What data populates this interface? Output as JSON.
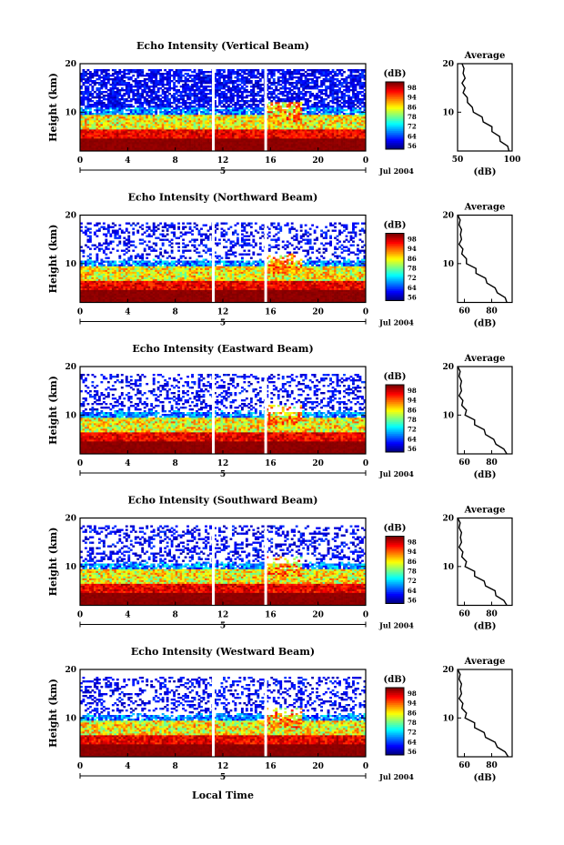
{
  "figure": {
    "date_label": "Jul 2004",
    "xlabel": "Local Time",
    "ylabel": "Height (km)",
    "colorbar_unit": "(dB)",
    "colorbar_ticks": [
      "56",
      "64",
      "72",
      "78",
      "86",
      "94",
      "98"
    ],
    "avg_title": "Average",
    "avg_xlabel": "(dB)",
    "day_marker": "5"
  },
  "chart_data": [
    {
      "type": "heatmap",
      "title": "Echo Intensity (Vertical Beam)",
      "ylabel": "Height (km)",
      "x_ticks": [
        "0",
        "4",
        "8",
        "12",
        "16",
        "20",
        "0"
      ],
      "y_ticks": [
        "20",
        "10"
      ],
      "ylim": [
        2,
        20
      ],
      "xlim_hours": [
        0,
        24
      ],
      "colorbar": {
        "label": "(dB)",
        "range": [
          50,
          100
        ],
        "ticks": [
          "56",
          "64",
          "72",
          "78",
          "86",
          "94",
          "98"
        ]
      },
      "data_gaps_hours": [
        11.2,
        15.6
      ],
      "profile": {
        "title": "Average",
        "xlabel": "(dB)",
        "xticks": [
          "50",
          "100"
        ],
        "yticks": [
          "20",
          "10"
        ],
        "xlim": [
          50,
          100
        ],
        "heights_km": [
          2,
          3,
          4,
          5,
          6,
          7,
          8,
          9,
          10,
          11,
          12,
          13,
          14,
          15,
          16,
          17,
          18,
          19,
          20
        ],
        "values_db": [
          98,
          95,
          90,
          87,
          83,
          80,
          75,
          71,
          66,
          62,
          60,
          58,
          56,
          56,
          55,
          56,
          56,
          55,
          55
        ]
      }
    },
    {
      "type": "heatmap",
      "title": "Echo Intensity (Northward Beam)",
      "ylabel": "Height (km)",
      "x_ticks": [
        "0",
        "4",
        "8",
        "12",
        "16",
        "20",
        "0"
      ],
      "y_ticks": [
        "20",
        "10"
      ],
      "ylim": [
        2,
        20
      ],
      "xlim_hours": [
        0,
        24
      ],
      "colorbar": {
        "label": "(dB)",
        "range": [
          50,
          100
        ],
        "ticks": [
          "56",
          "64",
          "72",
          "78",
          "86",
          "94",
          "98"
        ]
      },
      "data_gaps_hours": [
        11.2,
        15.6
      ],
      "profile": {
        "title": "Average",
        "xlabel": "(dB)",
        "xticks": [
          "60",
          "80"
        ],
        "yticks": [
          "20",
          "10"
        ],
        "xlim": [
          55,
          95
        ],
        "heights_km": [
          2,
          3,
          4,
          5,
          6,
          7,
          8,
          9,
          10,
          11,
          12,
          13,
          14,
          15,
          16,
          17,
          18,
          19,
          20
        ],
        "values_db": [
          92,
          89,
          85,
          81,
          78,
          74,
          70,
          67,
          63,
          60,
          59,
          58,
          57,
          57,
          58,
          57,
          57,
          56,
          56
        ]
      }
    },
    {
      "type": "heatmap",
      "title": "Echo Intensity (Eastward Beam)",
      "ylabel": "Height (km)",
      "x_ticks": [
        "0",
        "4",
        "8",
        "12",
        "16",
        "20",
        "0"
      ],
      "y_ticks": [
        "20",
        "10"
      ],
      "ylim": [
        2,
        20
      ],
      "xlim_hours": [
        0,
        24
      ],
      "colorbar": {
        "label": "(dB)",
        "range": [
          50,
          100
        ],
        "ticks": [
          "56",
          "64",
          "72",
          "78",
          "86",
          "94",
          "98"
        ]
      },
      "data_gaps_hours": [
        11.2,
        15.6
      ],
      "profile": {
        "title": "Average",
        "xlabel": "(dB)",
        "xticks": [
          "60",
          "80"
        ],
        "yticks": [
          "20",
          "10"
        ],
        "xlim": [
          55,
          95
        ],
        "heights_km": [
          2,
          3,
          4,
          5,
          6,
          7,
          8,
          9,
          10,
          11,
          12,
          13,
          14,
          15,
          16,
          17,
          18,
          19,
          20
        ],
        "values_db": [
          92,
          88,
          84,
          80,
          77,
          73,
          69,
          66,
          62,
          60,
          59,
          58,
          57,
          57,
          58,
          57,
          57,
          56,
          56
        ]
      }
    },
    {
      "type": "heatmap",
      "title": "Echo Intensity (Southward Beam)",
      "ylabel": "Height (km)",
      "x_ticks": [
        "0",
        "4",
        "8",
        "12",
        "16",
        "20",
        "0"
      ],
      "y_ticks": [
        "20",
        "10"
      ],
      "ylim": [
        2,
        20
      ],
      "xlim_hours": [
        0,
        24
      ],
      "colorbar": {
        "label": "(dB)",
        "range": [
          50,
          100
        ],
        "ticks": [
          "56",
          "64",
          "72",
          "78",
          "86",
          "94",
          "98"
        ]
      },
      "data_gaps_hours": [
        11.2,
        15.6
      ],
      "profile": {
        "title": "Average",
        "xlabel": "(dB)",
        "xticks": [
          "60",
          "80"
        ],
        "yticks": [
          "20",
          "10"
        ],
        "xlim": [
          55,
          95
        ],
        "heights_km": [
          2,
          3,
          4,
          5,
          6,
          7,
          8,
          9,
          10,
          11,
          12,
          13,
          14,
          15,
          16,
          17,
          18,
          19,
          20
        ],
        "values_db": [
          92,
          88,
          84,
          81,
          77,
          73,
          69,
          66,
          62,
          60,
          59,
          58,
          57,
          57,
          58,
          57,
          57,
          56,
          56
        ]
      }
    },
    {
      "type": "heatmap",
      "title": "Echo Intensity (Westward Beam)",
      "ylabel": "Height (km)",
      "x_ticks": [
        "0",
        "4",
        "8",
        "12",
        "16",
        "20",
        "0"
      ],
      "y_ticks": [
        "20",
        "10"
      ],
      "ylim": [
        2,
        20
      ],
      "xlim_hours": [
        0,
        24
      ],
      "colorbar": {
        "label": "(dB)",
        "range": [
          50,
          100
        ],
        "ticks": [
          "56",
          "64",
          "72",
          "78",
          "86",
          "94",
          "98"
        ]
      },
      "data_gaps_hours": [
        11.2,
        15.6
      ],
      "profile": {
        "title": "Average",
        "xlabel": "(dB)",
        "xticks": [
          "60",
          "80"
        ],
        "yticks": [
          "20",
          "10"
        ],
        "xlim": [
          55,
          95
        ],
        "heights_km": [
          2,
          3,
          4,
          5,
          6,
          7,
          8,
          9,
          10,
          11,
          12,
          13,
          14,
          15,
          16,
          17,
          18,
          19,
          20
        ],
        "values_db": [
          93,
          89,
          85,
          81,
          77,
          73,
          69,
          66,
          62,
          60,
          59,
          58,
          57,
          57,
          58,
          57,
          57,
          56,
          56
        ]
      }
    }
  ]
}
